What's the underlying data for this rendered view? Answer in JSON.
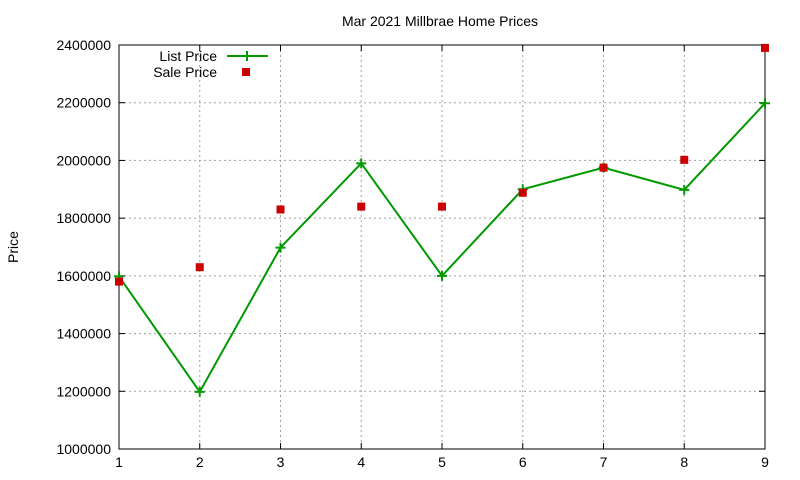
{
  "chart_data": {
    "type": "line",
    "title": "Mar 2021 Millbrae Home Prices",
    "xlabel": "",
    "ylabel": "Price",
    "xlim": [
      1,
      9
    ],
    "ylim": [
      1000000,
      2400000
    ],
    "x_ticks": [
      "1",
      "2",
      "3",
      "4",
      "5",
      "6",
      "7",
      "8",
      "9"
    ],
    "y_ticks": [
      "1000000",
      "1200000",
      "1400000",
      "1600000",
      "1800000",
      "2000000",
      "2200000",
      "2400000"
    ],
    "grid": true,
    "legend_position": "top-left",
    "x": [
      1,
      2,
      3,
      4,
      5,
      6,
      7,
      8,
      9
    ],
    "series": [
      {
        "name": "List Price",
        "style": "line-plus",
        "color": "#009900",
        "values": [
          1598000,
          1198000,
          1698000,
          1990000,
          1600000,
          1900000,
          1975000,
          1898000,
          2198000
        ]
      },
      {
        "name": "Sale Price",
        "style": "square",
        "color": "#cc0000",
        "values": [
          1580000,
          1630000,
          1830000,
          1840000,
          1840000,
          1888000,
          1975000,
          2002000,
          2390000
        ]
      }
    ]
  }
}
